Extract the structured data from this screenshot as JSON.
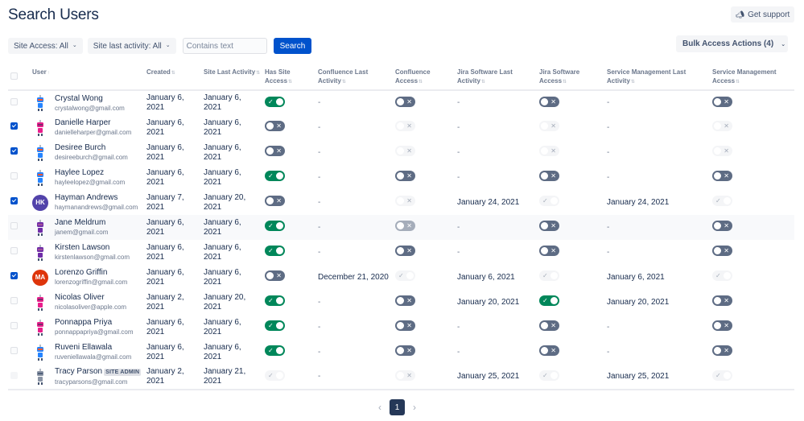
{
  "header": {
    "title": "Search Users",
    "support_label": "Get support",
    "support_icon": "megaphone-icon"
  },
  "filters": {
    "site_access": "Site Access: All",
    "site_last_activity": "Site last activity: All",
    "search_placeholder": "Contains text",
    "search_value": "",
    "search_button": "Search"
  },
  "bulk_actions_label": "Bulk Access Actions (4)",
  "columns": [
    {
      "key": "select",
      "label": ""
    },
    {
      "key": "user",
      "label": "User",
      "sort": "↑"
    },
    {
      "key": "created",
      "label": "Created",
      "sort": "⇅"
    },
    {
      "key": "site_last_activity",
      "label": "Site Last Activity",
      "sort": "⇅"
    },
    {
      "key": "has_site_access",
      "label": "Has Site Access",
      "sort": "⇅"
    },
    {
      "key": "confluence_last_activity",
      "label": "Confluence Last Activity",
      "sort": "⇅"
    },
    {
      "key": "confluence_access",
      "label": "Confluence Access",
      "sort": "⇅"
    },
    {
      "key": "jira_last_activity",
      "label": "Jira Software Last Activity",
      "sort": "⇅"
    },
    {
      "key": "jira_access",
      "label": "Jira Software Access",
      "sort": "⇅"
    },
    {
      "key": "sm_last_activity",
      "label": "Service Management Last Activity",
      "sort": "⇅"
    },
    {
      "key": "sm_access",
      "label": "Service Management Access",
      "sort": "⇅"
    }
  ],
  "rows": [
    {
      "checked": false,
      "avatar": "robot-blue",
      "name": "Crystal Wong",
      "email": "crystalwong@gmail.com",
      "badge": "",
      "created": [
        "January 6,",
        "2021"
      ],
      "site_last": [
        "January 6,",
        "2021"
      ],
      "site_access": "on",
      "conf_last": "-",
      "conf_access": "off",
      "jira_last": "-",
      "jira_access": "off",
      "sm_last": "-",
      "sm_access": "off"
    },
    {
      "checked": true,
      "avatar": "robot-pink",
      "name": "Danielle Harper",
      "email": "danielleharper@gmail.com",
      "badge": "",
      "created": [
        "January 6,",
        "2021"
      ],
      "site_last": [
        "January 6,",
        "2021"
      ],
      "site_access": "off",
      "conf_last": "-",
      "conf_access": "dis-off",
      "jira_last": "-",
      "jira_access": "dis-off",
      "sm_last": "-",
      "sm_access": "dis-off"
    },
    {
      "checked": true,
      "avatar": "robot-blue",
      "name": "Desiree Burch",
      "email": "desireeburch@gmail.com",
      "badge": "",
      "created": [
        "January 6,",
        "2021"
      ],
      "site_last": [
        "January 6,",
        "2021"
      ],
      "site_access": "off",
      "conf_last": "-",
      "conf_access": "dis-off",
      "jira_last": "-",
      "jira_access": "dis-off",
      "sm_last": "-",
      "sm_access": "dis-off"
    },
    {
      "checked": false,
      "avatar": "robot-blue",
      "name": "Haylee Lopez",
      "email": "hayleelopez@gmail.com",
      "badge": "",
      "created": [
        "January 6,",
        "2021"
      ],
      "site_last": [
        "January 6,",
        "2021"
      ],
      "site_access": "on",
      "conf_last": "-",
      "conf_access": "off",
      "jira_last": "-",
      "jira_access": "off",
      "sm_last": "-",
      "sm_access": "off"
    },
    {
      "checked": true,
      "avatar": "initials",
      "initials": "HK",
      "avatar_color": "#5243aa",
      "name": "Hayman Andrews",
      "email": "haymanandrews@gmail.com",
      "badge": "",
      "created": [
        "January 7,",
        "2021"
      ],
      "site_last": [
        "January 20,",
        "2021"
      ],
      "site_access": "off",
      "conf_last": "-",
      "conf_access": "dis-off",
      "jira_last": "January 24, 2021",
      "jira_access": "dis-on",
      "sm_last": "January 24, 2021",
      "sm_access": "dis-on"
    },
    {
      "checked": false,
      "avatar": "robot-purple",
      "name": "Jane Meldrum",
      "email": "janem@gmail.com",
      "badge": "",
      "created": [
        "January 6,",
        "2021"
      ],
      "site_last": [
        "January 6,",
        "2021"
      ],
      "site_access": "on",
      "conf_last": "-",
      "conf_access": "off-mid",
      "jira_last": "-",
      "jira_access": "off",
      "sm_last": "-",
      "sm_access": "off",
      "highlight": true
    },
    {
      "checked": false,
      "avatar": "robot-purple",
      "name": "Kirsten Lawson",
      "email": "kirstenlawson@gmail.com",
      "badge": "",
      "created": [
        "January 6,",
        "2021"
      ],
      "site_last": [
        "January 6,",
        "2021"
      ],
      "site_access": "on",
      "conf_last": "-",
      "conf_access": "off",
      "jira_last": "-",
      "jira_access": "off",
      "sm_last": "-",
      "sm_access": "off"
    },
    {
      "checked": true,
      "avatar": "initials",
      "initials": "MA",
      "avatar_color": "#de350b",
      "name": "Lorenzo Griffin",
      "email": "lorenzogriffin@gmail.com",
      "badge": "",
      "created": [
        "January 6,",
        "2021"
      ],
      "site_last": [
        "January 6,",
        "2021"
      ],
      "site_access": "off",
      "conf_last": "December 21, 2020",
      "conf_access": "dis-on",
      "jira_last": "January 6, 2021",
      "jira_access": "dis-on",
      "sm_last": "January 6, 2021",
      "sm_access": "dis-on"
    },
    {
      "checked": false,
      "avatar": "robot-pink",
      "name": "Nicolas Oliver",
      "email": "nicolasoliver@apple.com",
      "badge": "",
      "created": [
        "January 2,",
        "2021"
      ],
      "site_last": [
        "January 20,",
        "2021"
      ],
      "site_access": "on",
      "conf_last": "-",
      "conf_access": "off",
      "jira_last": "January 20, 2021",
      "jira_access": "on",
      "sm_last": "January 20, 2021",
      "sm_access": "off"
    },
    {
      "checked": false,
      "avatar": "robot-pink",
      "name": "Ponnappa Priya",
      "email": "ponnappapriya@gmail.com",
      "badge": "",
      "created": [
        "January 6,",
        "2021"
      ],
      "site_last": [
        "January 6,",
        "2021"
      ],
      "site_access": "on",
      "conf_last": "-",
      "conf_access": "off",
      "jira_last": "-",
      "jira_access": "off",
      "sm_last": "-",
      "sm_access": "off"
    },
    {
      "checked": false,
      "avatar": "robot-blue",
      "name": "Ruveni Ellawala",
      "email": "ruveniellawala@gmail.com",
      "badge": "",
      "created": [
        "January 6,",
        "2021"
      ],
      "site_last": [
        "January 6,",
        "2021"
      ],
      "site_access": "on",
      "conf_last": "-",
      "conf_access": "off",
      "jira_last": "-",
      "jira_access": "off",
      "sm_last": "-",
      "sm_access": "off"
    },
    {
      "checked": "disabled",
      "avatar": "robot-gray",
      "name": "Tracy Parson",
      "email": "tracyparsons@gmail.com",
      "badge": "SITE ADMIN",
      "created": [
        "January 2,",
        "2021"
      ],
      "site_last": [
        "January 21,",
        "2021"
      ],
      "site_access": "dis-on",
      "conf_last": "-",
      "conf_access": "dis-off",
      "jira_last": "January 25, 2021",
      "jira_access": "dis-on",
      "sm_last": "January 25, 2021",
      "sm_access": "dis-on"
    }
  ],
  "pagination": {
    "current": "1",
    "prev_icon": "chevron-left-icon",
    "next_icon": "chevron-right-icon"
  },
  "colors": {
    "primary": "#0052cc",
    "toggle_on": "#00875a",
    "toggle_off": "#5e6c84",
    "page_active": "#253858"
  }
}
